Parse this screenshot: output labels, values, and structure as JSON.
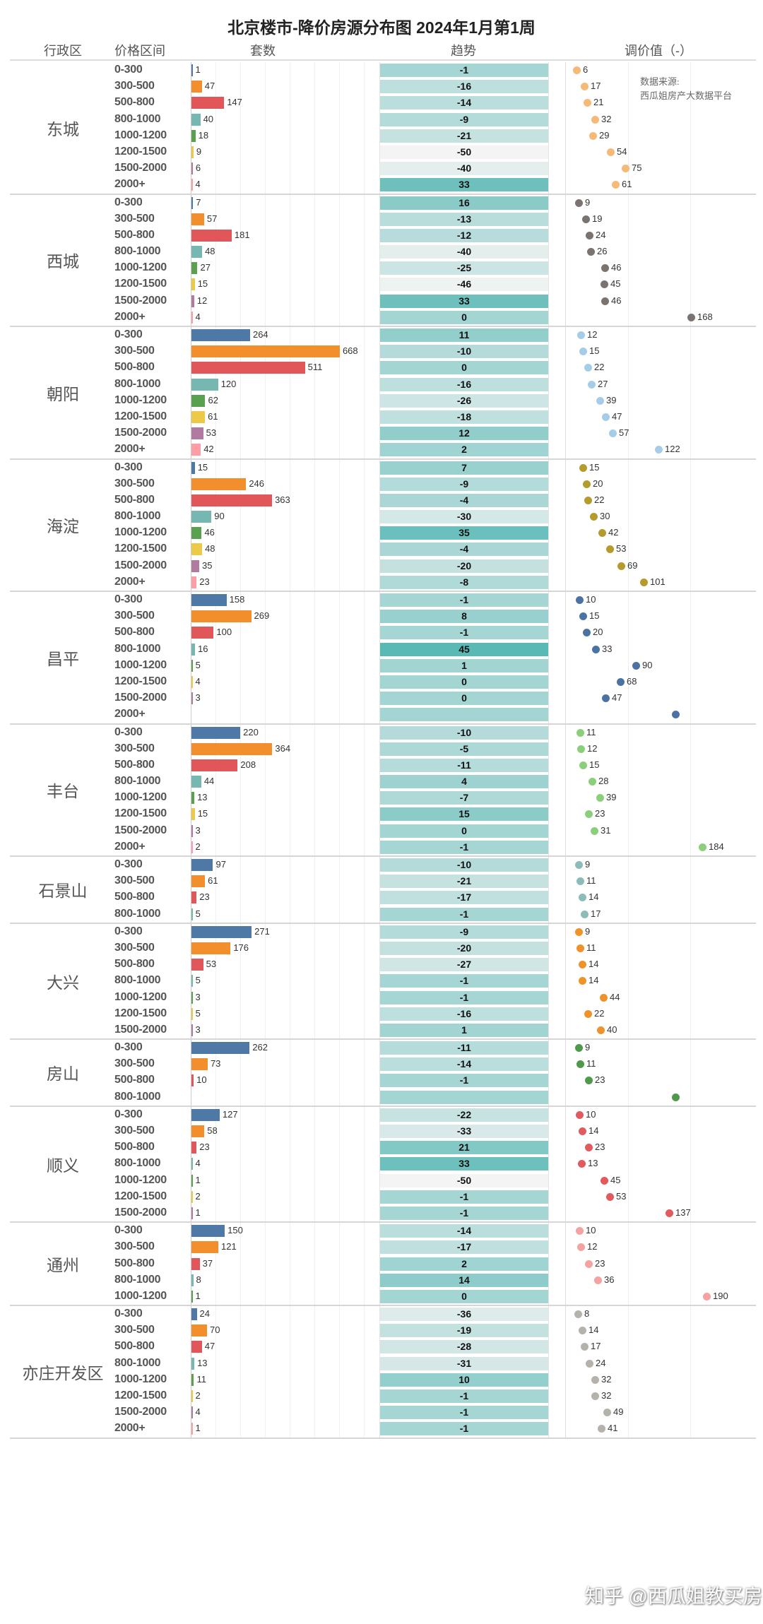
{
  "title": "北京楼市-降价房源分布图 2024年1月第1周",
  "headers": {
    "district": "行政区",
    "price": "价格区间",
    "count": "套数",
    "trend": "趋势",
    "adjust": "调价值（-）"
  },
  "source": {
    "line1": "数据来源:",
    "line2": "西瓜姐房产大数据平台"
  },
  "watermark": "知乎 @西瓜姐教买房",
  "chart_data": {
    "type": "table",
    "title": "北京楼市-降价房源分布图 2024年1月第1周",
    "columns": [
      "行政区",
      "价格区间",
      "套数",
      "趋势",
      "调价值（-）"
    ],
    "count_axis_max": 700,
    "trend_color_scale": {
      "low": -50,
      "high": 45,
      "low_color": "#f4f4f4",
      "high_color": "#5bb9b5"
    },
    "price_colors": {
      "0-300": "#4e79a7",
      "300-500": "#f28e2b",
      "500-800": "#e15759",
      "800-1000": "#76b7b2",
      "1000-1200": "#59a14f",
      "1200-1500": "#edc948",
      "1500-2000": "#b07aa1",
      "2000+": "#ff9da7"
    },
    "districts": [
      {
        "name": "东城",
        "dot_color": "#f5b978",
        "ranges": [
          "0-300",
          "300-500",
          "500-800",
          "800-1000",
          "1000-1200",
          "1200-1500",
          "1500-2000",
          "2000+"
        ],
        "count": [
          1,
          47,
          147,
          40,
          18,
          9,
          6,
          4
        ],
        "trend": [
          -1,
          -16,
          -14,
          -9,
          -21,
          -50,
          -40,
          33
        ],
        "adjust": [
          6,
          17,
          21,
          32,
          29,
          54,
          75,
          61
        ]
      },
      {
        "name": "西城",
        "dot_color": "#7a7370",
        "ranges": [
          "0-300",
          "300-500",
          "500-800",
          "800-1000",
          "1000-1200",
          "1200-1500",
          "1500-2000",
          "2000+"
        ],
        "count": [
          7,
          57,
          181,
          48,
          27,
          15,
          12,
          4
        ],
        "trend": [
          16,
          -13,
          -12,
          -40,
          -25,
          -46,
          33,
          0
        ],
        "adjust": [
          9,
          19,
          24,
          26,
          46,
          45,
          46,
          168
        ]
      },
      {
        "name": "朝阳",
        "dot_color": "#a6cde8",
        "ranges": [
          "0-300",
          "300-500",
          "500-800",
          "800-1000",
          "1000-1200",
          "1200-1500",
          "1500-2000",
          "2000+"
        ],
        "count": [
          264,
          668,
          511,
          120,
          62,
          61,
          53,
          42
        ],
        "trend": [
          11,
          -10,
          0,
          -16,
          -26,
          -18,
          12,
          2
        ],
        "adjust": [
          12,
          15,
          22,
          27,
          39,
          47,
          57,
          122
        ]
      },
      {
        "name": "海淀",
        "dot_color": "#b59a2e",
        "ranges": [
          "0-300",
          "300-500",
          "500-800",
          "800-1000",
          "1000-1200",
          "1200-1500",
          "1500-2000",
          "2000+"
        ],
        "count": [
          15,
          246,
          363,
          90,
          46,
          48,
          35,
          23
        ],
        "trend": [
          7,
          -9,
          -4,
          -30,
          35,
          -4,
          -20,
          -8
        ],
        "adjust": [
          15,
          20,
          22,
          30,
          42,
          53,
          69,
          101
        ]
      },
      {
        "name": "昌平",
        "dot_color": "#4a73a4",
        "ranges": [
          "0-300",
          "300-500",
          "500-800",
          "800-1000",
          "1000-1200",
          "1200-1500",
          "1500-2000",
          "2000+"
        ],
        "count": [
          158,
          269,
          100,
          16,
          5,
          4,
          3,
          null
        ],
        "trend": [
          -1,
          8,
          -1,
          45,
          1,
          0,
          0,
          null
        ],
        "adjust": [
          10,
          15,
          20,
          33,
          90,
          68,
          47,
          null
        ]
      },
      {
        "name": "丰台",
        "dot_color": "#8ccf7b",
        "ranges": [
          "0-300",
          "300-500",
          "500-800",
          "800-1000",
          "1000-1200",
          "1200-1500",
          "1500-2000",
          "2000+"
        ],
        "count": [
          220,
          364,
          208,
          44,
          13,
          15,
          3,
          2
        ],
        "trend": [
          -10,
          -5,
          -11,
          4,
          -7,
          15,
          0,
          -1
        ],
        "adjust": [
          11,
          12,
          15,
          28,
          39,
          23,
          31,
          184
        ]
      },
      {
        "name": "石景山",
        "dot_color": "#8bbcb7",
        "ranges": [
          "0-300",
          "300-500",
          "500-800",
          "800-1000"
        ],
        "count": [
          97,
          61,
          23,
          5
        ],
        "trend": [
          -10,
          -21,
          -17,
          -1
        ],
        "adjust": [
          9,
          11,
          14,
          17
        ]
      },
      {
        "name": "大兴",
        "dot_color": "#f0922c",
        "ranges": [
          "0-300",
          "300-500",
          "500-800",
          "800-1000",
          "1000-1200",
          "1200-1500",
          "1500-2000"
        ],
        "count": [
          271,
          176,
          53,
          5,
          3,
          5,
          3
        ],
        "trend": [
          -9,
          -20,
          -27,
          -1,
          -1,
          -16,
          1
        ],
        "adjust": [
          9,
          11,
          14,
          14,
          44,
          22,
          40
        ]
      },
      {
        "name": "房山",
        "dot_color": "#4e9a4a",
        "ranges": [
          "0-300",
          "300-500",
          "500-800",
          "800-1000"
        ],
        "count": [
          262,
          73,
          10,
          null
        ],
        "trend": [
          -11,
          -14,
          -1,
          null
        ],
        "adjust": [
          9,
          11,
          23,
          null
        ]
      },
      {
        "name": "顺义",
        "dot_color": "#e05a5e",
        "ranges": [
          "0-300",
          "300-500",
          "500-800",
          "800-1000",
          "1000-1200",
          "1200-1500",
          "1500-2000"
        ],
        "count": [
          127,
          58,
          23,
          4,
          1,
          2,
          1
        ],
        "trend": [
          -22,
          -33,
          21,
          33,
          -50,
          -1,
          -1
        ],
        "adjust": [
          10,
          14,
          23,
          13,
          45,
          53,
          137
        ]
      },
      {
        "name": "通州",
        "dot_color": "#f4a3a0",
        "ranges": [
          "0-300",
          "300-500",
          "500-800",
          "800-1000",
          "1000-1200"
        ],
        "count": [
          150,
          121,
          37,
          8,
          1
        ],
        "trend": [
          -14,
          -17,
          2,
          14,
          0
        ],
        "adjust": [
          10,
          12,
          23,
          36,
          190
        ]
      },
      {
        "name": "亦庄开发区",
        "dot_color": "#b5b1ab",
        "ranges": [
          "0-300",
          "300-500",
          "500-800",
          "800-1000",
          "1000-1200",
          "1200-1500",
          "1500-2000",
          "2000+"
        ],
        "count": [
          24,
          70,
          47,
          13,
          11,
          2,
          4,
          1
        ],
        "trend": [
          -36,
          -19,
          -28,
          -31,
          10,
          -1,
          -1,
          -1
        ],
        "adjust": [
          8,
          14,
          17,
          24,
          32,
          32,
          49,
          41
        ]
      }
    ]
  }
}
